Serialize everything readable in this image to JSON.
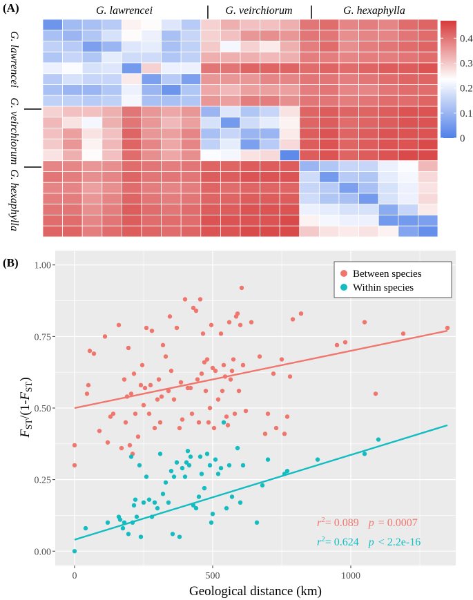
{
  "panel_a_label": "(A)",
  "panel_b_label": "(B)",
  "colors": {
    "low": "#4f7fe8",
    "mid": "#ffffff",
    "high": "#d63a3a",
    "between": "#f0766d",
    "within": "#13bcc0",
    "panel_bg": "#ebebeb",
    "grid": "#ffffff"
  },
  "chart_data": [
    {
      "type": "heatmap",
      "title": "",
      "groups": [
        "G. lawrencei",
        "G. veirchiorum",
        "G. hexaphylla"
      ],
      "group_sizes": [
        8,
        5,
        7
      ],
      "colorbar": {
        "min": 0,
        "max": 0.47,
        "ticks": [
          0,
          0.1,
          0.2,
          0.3,
          0.4
        ],
        "tick_labels": [
          "0",
          "0.1",
          "0.2",
          "0.3",
          "0.4"
        ]
      },
      "matrix": [
        [
          0.04,
          0.11,
          0.12,
          0.14,
          0.25,
          0.24,
          0.19,
          0.14,
          0.29,
          0.33,
          0.31,
          0.31,
          0.33,
          0.4,
          0.41,
          0.38,
          0.39,
          0.38,
          0.41,
          0.42
        ],
        [
          0.12,
          0.1,
          0.13,
          0.18,
          0.24,
          0.21,
          0.12,
          0.16,
          0.29,
          0.31,
          0.36,
          0.37,
          0.36,
          0.4,
          0.4,
          0.37,
          0.38,
          0.38,
          0.4,
          0.41
        ],
        [
          0.15,
          0.14,
          0.06,
          0.1,
          0.19,
          0.2,
          0.12,
          0.15,
          0.3,
          0.22,
          0.29,
          0.26,
          0.33,
          0.39,
          0.41,
          0.37,
          0.39,
          0.4,
          0.41,
          0.42
        ],
        [
          0.13,
          0.16,
          0.13,
          0.2,
          0.17,
          0.17,
          0.13,
          0.15,
          0.33,
          0.33,
          0.33,
          0.32,
          0.33,
          0.39,
          0.39,
          0.38,
          0.39,
          0.39,
          0.4,
          0.41
        ],
        [
          0.21,
          0.23,
          0.18,
          0.19,
          0.05,
          0.29,
          0.21,
          0.21,
          0.4,
          0.4,
          0.42,
          0.42,
          0.42,
          0.41,
          0.42,
          0.41,
          0.42,
          0.43,
          0.43,
          0.44
        ],
        [
          0.14,
          0.18,
          0.16,
          0.16,
          0.26,
          0.06,
          0.14,
          0.06,
          0.36,
          0.36,
          0.36,
          0.38,
          0.38,
          0.4,
          0.4,
          0.39,
          0.4,
          0.41,
          0.42,
          0.42
        ],
        [
          0.12,
          0.1,
          0.1,
          0.13,
          0.21,
          0.1,
          0.04,
          0.13,
          0.34,
          0.32,
          0.35,
          0.35,
          0.35,
          0.39,
          0.4,
          0.38,
          0.38,
          0.4,
          0.41,
          0.41
        ],
        [
          0.15,
          0.15,
          0.14,
          0.15,
          0.22,
          0.12,
          0.12,
          0.13,
          0.36,
          0.35,
          0.39,
          0.39,
          0.37,
          0.4,
          0.4,
          0.39,
          0.4,
          0.41,
          0.41,
          0.42
        ],
        [
          0.29,
          0.31,
          0.31,
          0.33,
          0.4,
          0.36,
          0.34,
          0.36,
          0.1,
          0.19,
          0.13,
          0.16,
          0.27,
          0.42,
          0.43,
          0.42,
          0.42,
          0.43,
          0.44,
          0.44
        ],
        [
          0.32,
          0.27,
          0.22,
          0.33,
          0.4,
          0.36,
          0.32,
          0.35,
          0.18,
          0.05,
          0.17,
          0.2,
          0.25,
          0.42,
          0.43,
          0.41,
          0.42,
          0.43,
          0.44,
          0.44
        ],
        [
          0.31,
          0.35,
          0.27,
          0.31,
          0.42,
          0.36,
          0.35,
          0.38,
          0.12,
          0.16,
          0.1,
          0.1,
          0.26,
          0.43,
          0.44,
          0.42,
          0.43,
          0.44,
          0.44,
          0.44
        ],
        [
          0.3,
          0.36,
          0.25,
          0.32,
          0.42,
          0.38,
          0.34,
          0.38,
          0.15,
          0.2,
          0.06,
          0.14,
          0.28,
          0.43,
          0.44,
          0.42,
          0.43,
          0.44,
          0.44,
          0.45
        ],
        [
          0.27,
          0.33,
          0.24,
          0.31,
          0.41,
          0.37,
          0.34,
          0.37,
          0.23,
          0.22,
          0.27,
          0.28,
          0.02,
          0.43,
          0.44,
          0.42,
          0.43,
          0.44,
          0.45,
          0.45
        ],
        [
          0.38,
          0.38,
          0.36,
          0.37,
          0.41,
          0.4,
          0.39,
          0.4,
          0.42,
          0.42,
          0.43,
          0.43,
          0.43,
          0.1,
          0.13,
          0.16,
          0.16,
          0.21,
          0.23,
          0.32
        ],
        [
          0.4,
          0.39,
          0.37,
          0.38,
          0.42,
          0.4,
          0.4,
          0.4,
          0.43,
          0.43,
          0.44,
          0.44,
          0.44,
          0.17,
          0.05,
          0.14,
          0.13,
          0.2,
          0.22,
          0.28
        ],
        [
          0.38,
          0.38,
          0.35,
          0.37,
          0.41,
          0.39,
          0.38,
          0.39,
          0.42,
          0.41,
          0.42,
          0.42,
          0.42,
          0.16,
          0.14,
          0.06,
          0.12,
          0.18,
          0.21,
          0.27
        ],
        [
          0.39,
          0.39,
          0.36,
          0.38,
          0.42,
          0.4,
          0.39,
          0.4,
          0.42,
          0.42,
          0.43,
          0.43,
          0.43,
          0.17,
          0.13,
          0.12,
          0.05,
          0.18,
          0.21,
          0.28
        ],
        [
          0.4,
          0.4,
          0.37,
          0.39,
          0.43,
          0.41,
          0.4,
          0.41,
          0.43,
          0.43,
          0.44,
          0.44,
          0.44,
          0.21,
          0.2,
          0.18,
          0.18,
          0.08,
          0.16,
          0.26
        ],
        [
          0.41,
          0.41,
          0.38,
          0.4,
          0.43,
          0.41,
          0.41,
          0.41,
          0.44,
          0.44,
          0.44,
          0.44,
          0.45,
          0.25,
          0.22,
          0.21,
          0.21,
          0.05,
          0.05,
          0.06
        ],
        [
          0.42,
          0.42,
          0.39,
          0.41,
          0.43,
          0.42,
          0.41,
          0.42,
          0.44,
          0.44,
          0.45,
          0.45,
          0.45,
          0.3,
          0.27,
          0.26,
          0.27,
          0.25,
          0.07,
          0.03
        ]
      ]
    },
    {
      "type": "scatter",
      "title": "",
      "xlabel": "Geological distance (km)",
      "ylabel": "FST/(1-FST)",
      "ylabel_main": "F",
      "ylabel_sub": "ST",
      "ylabel_mid": "/(1-",
      "ylabel_end": ")",
      "xlim": [
        -70,
        1380
      ],
      "ylim": [
        -0.05,
        1.05
      ],
      "xticks": [
        0,
        500,
        1000
      ],
      "xtick_labels": [
        "0",
        "500",
        "1000"
      ],
      "yticks": [
        0,
        0.25,
        0.5,
        0.75,
        1.0
      ],
      "ytick_labels": [
        "0.00",
        "0.25",
        "0.50",
        "0.75",
        "1.00"
      ],
      "legend_position": "top-right",
      "series": [
        {
          "name": "Between species",
          "x": [
            0,
            0,
            45,
            50,
            55,
            70,
            90,
            110,
            120,
            130,
            140,
            160,
            170,
            180,
            185,
            190,
            195,
            200,
            205,
            210,
            215,
            220,
            230,
            240,
            245,
            250,
            255,
            260,
            270,
            275,
            280,
            290,
            300,
            305,
            310,
            315,
            320,
            330,
            340,
            345,
            350,
            360,
            370,
            380,
            385,
            390,
            400,
            410,
            420,
            425,
            430,
            440,
            445,
            450,
            455,
            460,
            465,
            470,
            475,
            480,
            485,
            490,
            495,
            500,
            505,
            510,
            520,
            530,
            535,
            540,
            545,
            550,
            555,
            560,
            565,
            570,
            575,
            580,
            585,
            590,
            595,
            600,
            605,
            610,
            620,
            640,
            670,
            690,
            700,
            720,
            730,
            750,
            760,
            770,
            780,
            790,
            820,
            950,
            980,
            1050,
            1090,
            1190,
            1350
          ],
          "y": [
            0.37,
            0.3,
            0.55,
            0.58,
            0.7,
            0.69,
            0.42,
            0.75,
            0.38,
            0.47,
            0.48,
            0.79,
            0.36,
            0.6,
            0.45,
            0.54,
            0.71,
            0.37,
            0.55,
            0.34,
            0.62,
            0.48,
            0.4,
            0.58,
            0.65,
            0.51,
            0.57,
            0.78,
            0.48,
            0.58,
            0.77,
            0.43,
            0.53,
            0.6,
            0.45,
            0.54,
            0.72,
            0.68,
            0.56,
            0.82,
            0.63,
            0.53,
            0.78,
            0.43,
            0.59,
            0.46,
            0.88,
            0.57,
            0.57,
            0.48,
            0.85,
            0.84,
            0.6,
            0.45,
            0.88,
            0.62,
            0.76,
            0.66,
            0.56,
            0.67,
            0.45,
            0.5,
            0.79,
            0.64,
            0.43,
            0.63,
            0.53,
            0.76,
            0.56,
            0.65,
            0.61,
            0.47,
            0.44,
            0.8,
            0.6,
            0.63,
            0.67,
            0.48,
            0.82,
            0.83,
            0.56,
            0.79,
            0.92,
            0.65,
            0.49,
            0.8,
            0.68,
            0.41,
            0.48,
            0.62,
            0.43,
            0.67,
            0.41,
            0.47,
            0.61,
            0.81,
            0.83,
            0.72,
            0.73,
            0.8,
            0.55,
            0.76,
            0.78
          ],
          "trend": {
            "x": [
              0,
              1350
            ],
            "y": [
              0.5,
              0.77
            ]
          }
        },
        {
          "name": "Within species",
          "x": [
            0,
            40,
            120,
            160,
            165,
            175,
            180,
            195,
            205,
            210,
            215,
            220,
            225,
            235,
            240,
            250,
            260,
            270,
            280,
            290,
            300,
            310,
            320,
            330,
            340,
            350,
            355,
            360,
            370,
            380,
            390,
            400,
            405,
            410,
            415,
            420,
            430,
            440,
            450,
            455,
            460,
            470,
            480,
            490,
            495,
            500,
            510,
            520,
            530,
            540,
            550,
            560,
            570,
            590,
            600,
            610,
            660,
            680,
            700,
            760,
            770,
            880,
            1050,
            1100
          ],
          "y": [
            0.0,
            0.08,
            0.1,
            0.12,
            0.11,
            0.08,
            0.1,
            0.06,
            0.33,
            0.1,
            0.16,
            0.18,
            0.12,
            0.3,
            0.05,
            0.17,
            0.26,
            0.18,
            0.12,
            0.17,
            0.15,
            0.34,
            0.2,
            0.24,
            0.17,
            0.28,
            0.06,
            0.26,
            0.31,
            0.05,
            0.29,
            0.26,
            0.31,
            0.35,
            0.3,
            0.33,
            0.16,
            0.15,
            0.19,
            0.33,
            0.27,
            0.22,
            0.34,
            0.3,
            0.1,
            0.13,
            0.32,
            0.27,
            0.29,
            0.45,
            0.15,
            0.3,
            0.19,
            0.36,
            0.17,
            0.3,
            0.1,
            0.23,
            0.32,
            0.27,
            0.28,
            0.32,
            0.34,
            0.39
          ],
          "trend": {
            "x": [
              0,
              1350
            ],
            "y": [
              0.04,
              0.44
            ]
          }
        }
      ],
      "annotations": [
        {
          "r2_label": "r",
          "r2_sup": "2",
          "r2_value": "= 0.089",
          "p_label": "p",
          "p_value": "= 0.0007"
        },
        {
          "r2_label": "r",
          "r2_sup": "2",
          "r2_value": "= 0.624",
          "p_label": "p",
          "p_value": "< 2.2e-16"
        }
      ]
    }
  ]
}
